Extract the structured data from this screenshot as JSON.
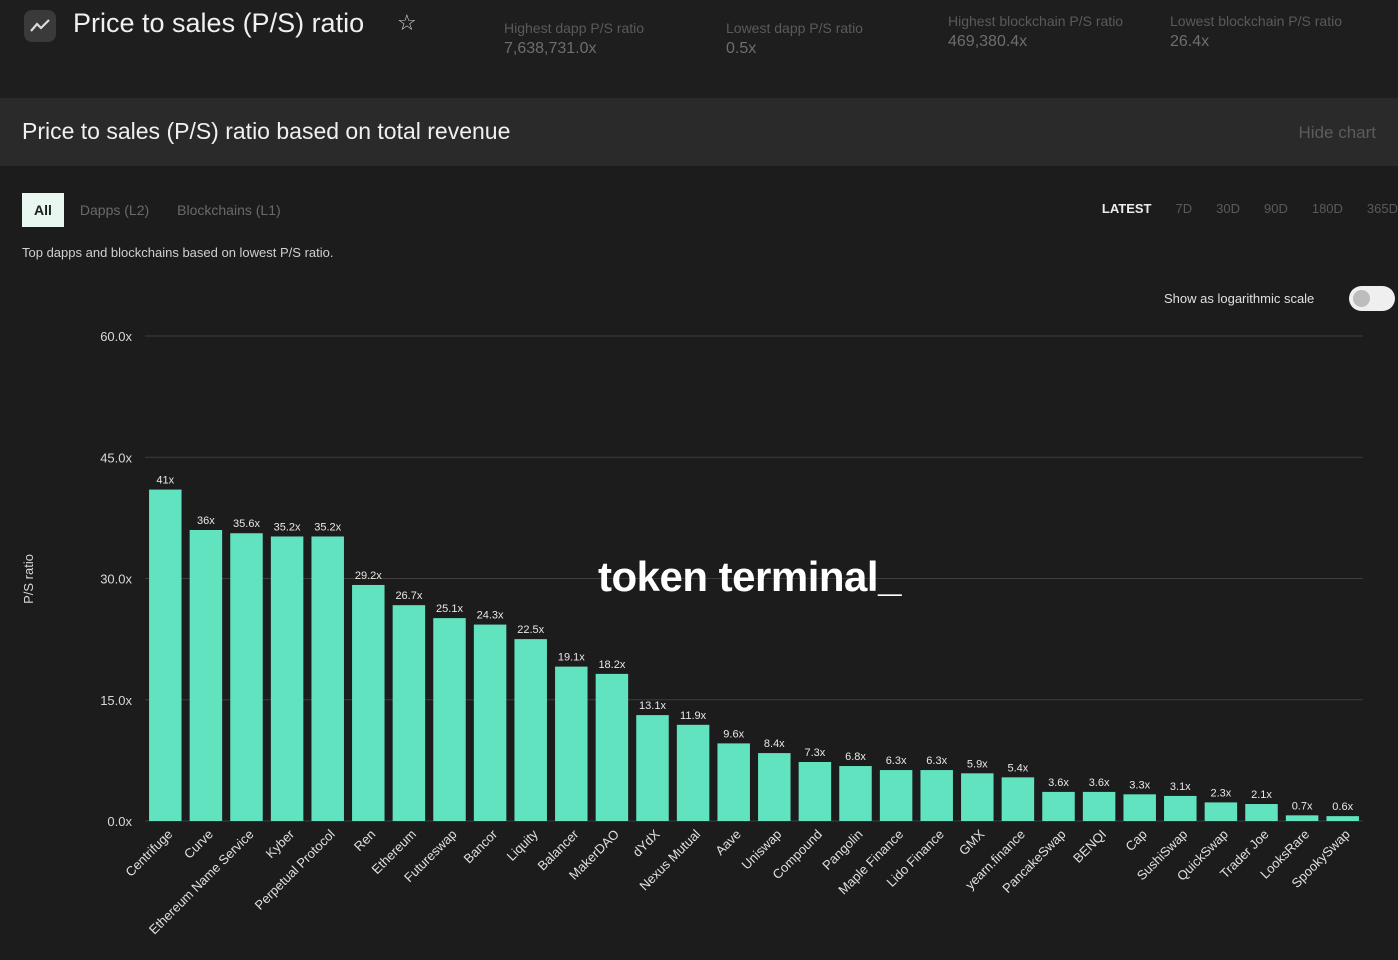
{
  "header": {
    "title": "Price to sales (P/S) ratio",
    "stats": [
      {
        "label": "Highest dapp P/S ratio",
        "value": "7,638,731.0x"
      },
      {
        "label": "Lowest dapp P/S ratio",
        "value": "0.5x"
      },
      {
        "label": "Highest blockchain P/S ratio",
        "value": "469,380.4x"
      },
      {
        "label": "Lowest blockchain P/S ratio",
        "value": "26.4x"
      }
    ]
  },
  "section": {
    "title": "Price to sales (P/S) ratio based on total revenue",
    "hide_chart": "Hide chart"
  },
  "filters": {
    "tabs": [
      "All",
      "Dapps (L2)",
      "Blockchains (L1)"
    ],
    "active": "All"
  },
  "time_range": {
    "options": [
      "LATEST",
      "7D",
      "30D",
      "90D",
      "180D",
      "365D"
    ],
    "active": "LATEST"
  },
  "subtitle": "Top dapps and blockchains based on lowest P/S ratio.",
  "log_scale": {
    "label": "Show as logarithmic scale",
    "enabled": false
  },
  "watermark": "token terminal_",
  "colors": {
    "bar": "#62e3c0",
    "background": "#1c1c1c"
  },
  "chart_data": {
    "type": "bar",
    "ylabel": "P/S ratio",
    "ylim": [
      0,
      60
    ],
    "yticks": [
      "0.0x",
      "15.0x",
      "30.0x",
      "45.0x",
      "60.0x"
    ],
    "grid": true,
    "categories": [
      "Centrifuge",
      "Curve",
      "Ethereum Name Service",
      "Kyber",
      "Perpetual Protocol",
      "Ren",
      "Ethereum",
      "Futureswap",
      "Bancor",
      "Liquity",
      "Balancer",
      "MakerDAO",
      "dYdX",
      "Nexus Mutual",
      "Aave",
      "Uniswap",
      "Compound",
      "Pangolin",
      "Maple Finance",
      "Lido Finance",
      "GMX",
      "yearn.finance",
      "PancakeSwap",
      "BENQI",
      "Cap",
      "SushiSwap",
      "QuickSwap",
      "Trader Joe",
      "LooksRare",
      "SpookySwap"
    ],
    "values": [
      41,
      36,
      35.6,
      35.2,
      35.2,
      29.2,
      26.7,
      25.1,
      24.3,
      22.5,
      19.1,
      18.2,
      13.1,
      11.9,
      9.6,
      8.4,
      7.3,
      6.8,
      6.3,
      6.3,
      5.9,
      5.4,
      3.6,
      3.6,
      3.3,
      3.1,
      2.3,
      2.1,
      0.7,
      0.6
    ],
    "data_labels": [
      "41x",
      "36x",
      "35.6x",
      "35.2x",
      "35.2x",
      "29.2x",
      "26.7x",
      "25.1x",
      "24.3x",
      "22.5x",
      "19.1x",
      "18.2x",
      "13.1x",
      "11.9x",
      "9.6x",
      "8.4x",
      "7.3x",
      "6.8x",
      "6.3x",
      "6.3x",
      "5.9x",
      "5.4x",
      "3.6x",
      "3.6x",
      "3.3x",
      "3.1x",
      "2.3x",
      "2.1x",
      "0.7x",
      "0.6x"
    ]
  }
}
